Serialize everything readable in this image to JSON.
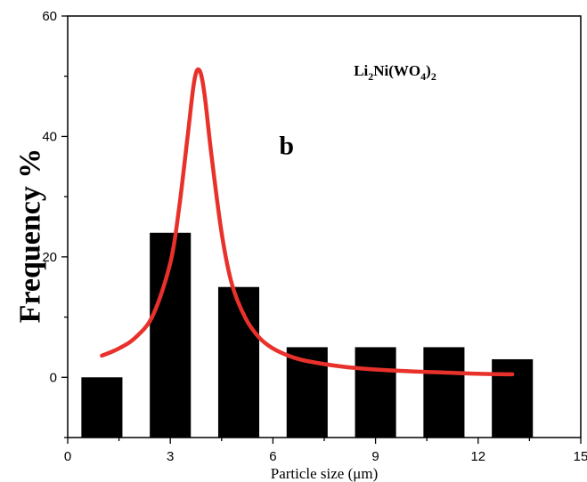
{
  "chart_data": {
    "type": "bar",
    "xlabel": "Particle size (μm)",
    "ylabel": "Frequency %",
    "xlim": [
      0,
      15
    ],
    "ylim": [
      -10,
      60
    ],
    "xticks": [
      0,
      3,
      6,
      9,
      12,
      15
    ],
    "yticks": [
      0,
      20,
      40,
      60
    ],
    "bar_width": 1.2,
    "bars": {
      "x": [
        1,
        3,
        5,
        7,
        9,
        11,
        13
      ],
      "values": [
        0,
        24,
        15,
        5,
        5,
        5,
        3
      ],
      "color": "#000000"
    },
    "fit_curve": {
      "color": "#e8312a",
      "x": [
        1.0,
        1.5,
        2.0,
        2.5,
        3.0,
        3.25,
        3.5,
        3.7,
        3.85,
        4.0,
        4.2,
        4.5,
        4.8,
        5.2,
        5.6,
        6.0,
        6.5,
        7.0,
        8.0,
        9.0,
        10.0,
        11.0,
        12.0,
        13.0
      ],
      "y": [
        3.6,
        4.8,
        6.7,
        10.4,
        19.0,
        27.8,
        39.7,
        49.2,
        51.0,
        47.0,
        37.0,
        24.0,
        15.5,
        9.8,
        6.6,
        4.8,
        3.5,
        2.7,
        1.8,
        1.3,
        1.0,
        0.8,
        0.6,
        0.5
      ]
    },
    "annotations": [
      {
        "id": "formula",
        "parts": [
          "Li",
          "2",
          "Ni(WO",
          "4",
          ")",
          "2"
        ],
        "x": 10.5,
        "y": 51
      },
      {
        "id": "panel",
        "text": "b",
        "x": 6.4,
        "y": 38.5
      }
    ]
  }
}
